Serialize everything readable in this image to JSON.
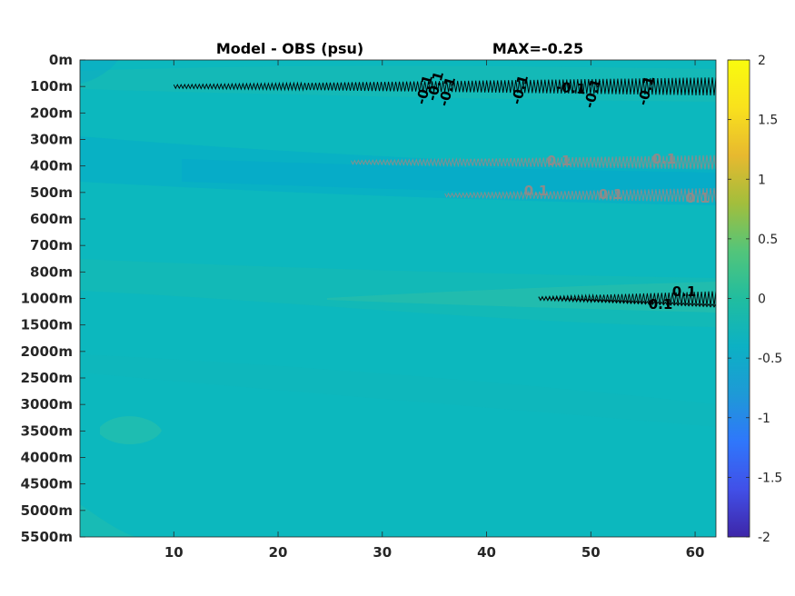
{
  "chart_data": {
    "type": "heatmap",
    "title": "Model - OBS (psu)",
    "max_label": "MAX=-0.25",
    "x_ticks": [
      10,
      20,
      30,
      40,
      50,
      60
    ],
    "xlim": [
      1,
      62
    ],
    "y_ticks": [
      "0m",
      "100m",
      "200m",
      "300m",
      "400m",
      "500m",
      "600m",
      "700m",
      "800m",
      "1000m",
      "1500m",
      "2000m",
      "2500m",
      "3000m",
      "3500m",
      "4000m",
      "4500m",
      "5000m",
      "5500m"
    ],
    "colorbar": {
      "ticks": [
        2,
        1.5,
        1,
        0.5,
        0,
        -0.5,
        -1,
        -1.5,
        -2
      ],
      "range": [
        -2,
        2
      ],
      "colormap": "parula",
      "colors": [
        "#3e26a8",
        "#4150e8",
        "#2f77fb",
        "#1e9ad6",
        "#0cb1c4",
        "#21bd9f",
        "#53c57a",
        "#a3be3c",
        "#e7b92f",
        "#f9e11d",
        "#f9fb0e"
      ]
    },
    "background_value": 0.0,
    "field_color": "#0cb8be",
    "contours": [
      {
        "value": -0.1,
        "color": "#000000",
        "depth_level": "100m",
        "x_range": [
          10,
          62
        ],
        "labels": [
          "-0.1",
          "-0.1",
          "-0.1",
          "-0.1",
          "-0.1",
          "-0.1",
          "-0.1"
        ]
      },
      {
        "value": 0.1,
        "color": "#8c8c8c",
        "depth_level": "400m",
        "x_range": [
          27,
          62
        ],
        "labels": [
          "0.1",
          "0.1"
        ]
      },
      {
        "value": 0.1,
        "color": "#8c8c8c",
        "depth_level": "500m",
        "x_range": [
          36,
          62
        ],
        "labels": [
          "0.1",
          "0.1",
          "0.1"
        ]
      },
      {
        "value": 0.1,
        "color": "#000000",
        "depth_level": "1000m",
        "x_range": [
          45,
          62
        ],
        "labels": [
          "0.1",
          "0.1"
        ]
      }
    ]
  }
}
